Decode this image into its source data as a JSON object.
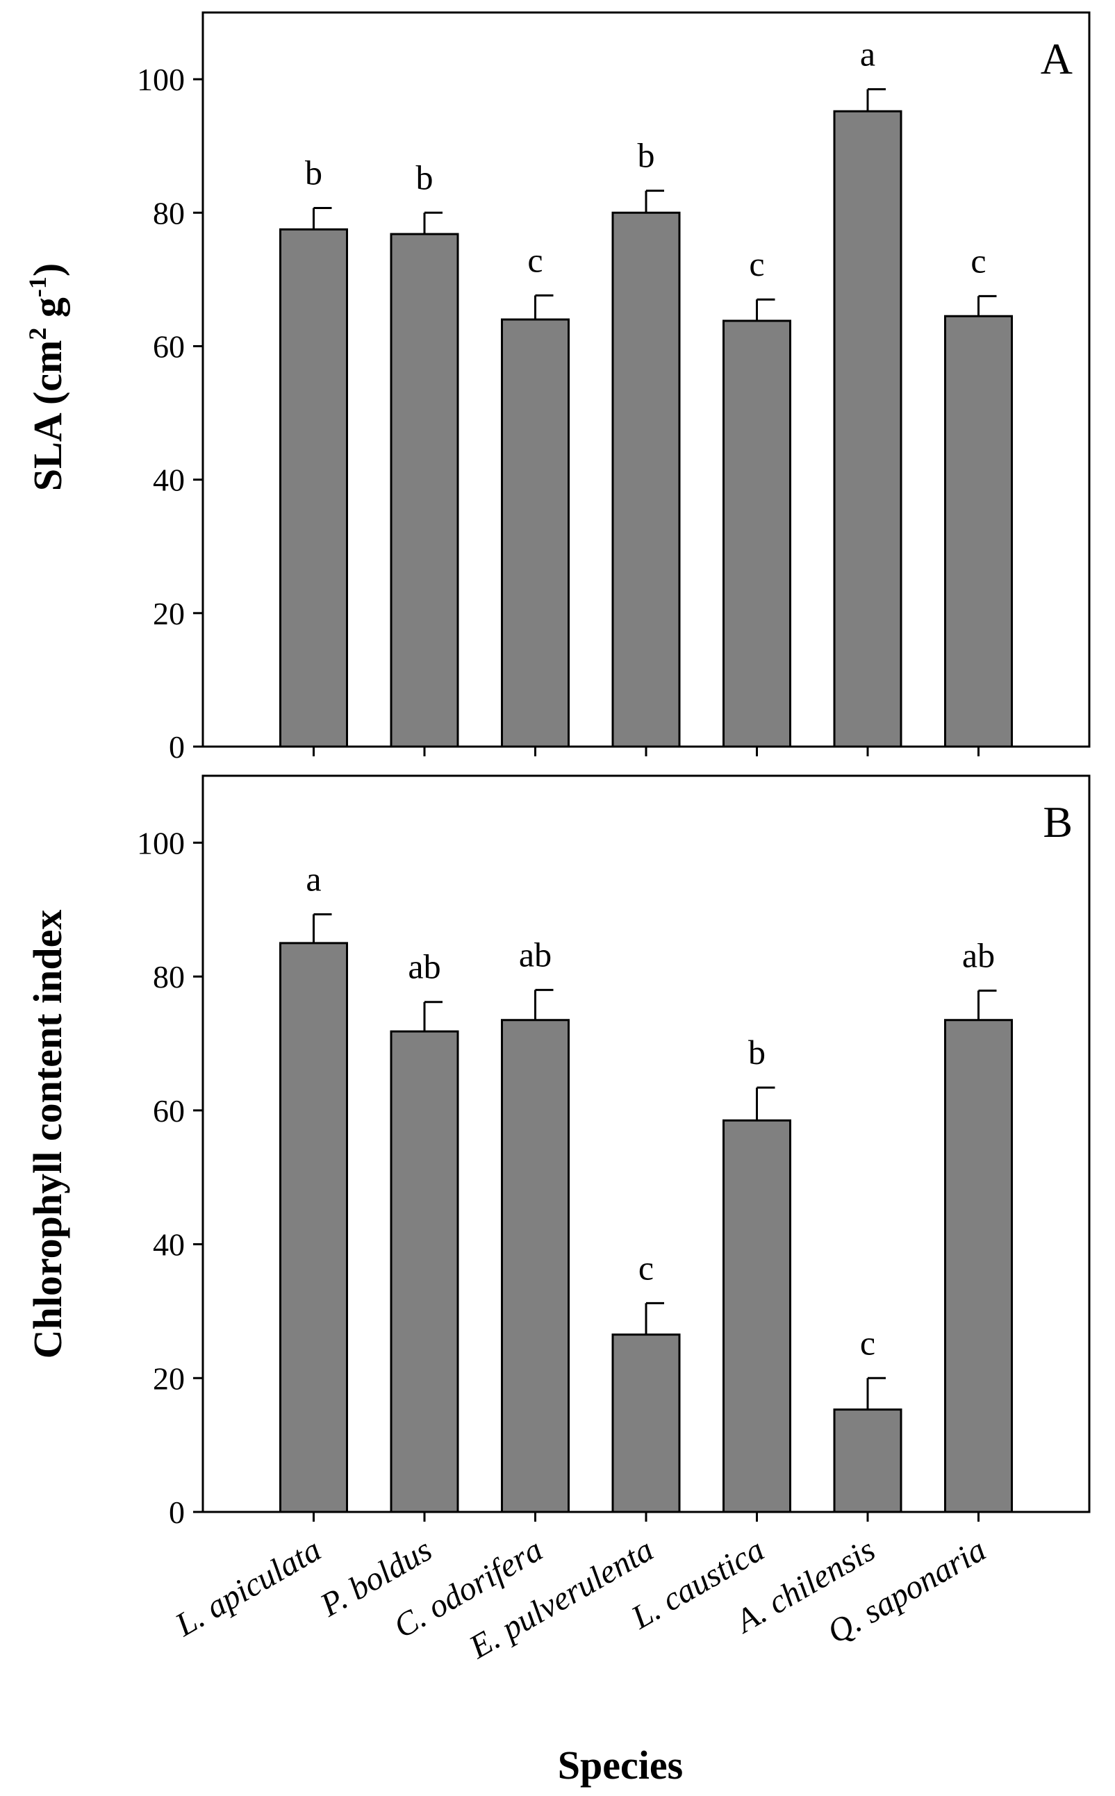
{
  "chart_data": [
    {
      "type": "bar",
      "panel_label": "A",
      "categories": [
        "L. apiculata",
        "P. boldus",
        "C. odorifera",
        "E. pulverulenta",
        "L. caustica",
        "A. chilensis",
        "Q. saponaria"
      ],
      "values": [
        77.5,
        76.8,
        64.0,
        80.0,
        63.8,
        95.2,
        64.5
      ],
      "errors": [
        3.2,
        3.2,
        3.6,
        3.3,
        3.2,
        3.3,
        3.0
      ],
      "significance": [
        "b",
        "b",
        "c",
        "b",
        "c",
        "a",
        "c"
      ],
      "ylabel": {
        "text": "SLA (cm",
        "sup1": "2",
        "mid": " g",
        "sup2": "-1",
        "end": ")"
      },
      "ylim": [
        0,
        110
      ],
      "yticks": [
        "0",
        "20",
        "40",
        "60",
        "80",
        "100"
      ],
      "bar_color": "#808080",
      "show_x_labels": false
    },
    {
      "type": "bar",
      "panel_label": "B",
      "categories": [
        "L. apiculata",
        "P. boldus",
        "C. odorifera",
        "E. pulverulenta",
        "L. caustica",
        "A. chilensis",
        "Q. saponaria"
      ],
      "values": [
        85.0,
        71.8,
        73.5,
        26.5,
        58.5,
        15.3,
        73.5
      ],
      "errors": [
        4.3,
        4.4,
        4.5,
        4.7,
        4.9,
        4.7,
        4.4
      ],
      "significance": [
        "a",
        "ab",
        "ab",
        "c",
        "b",
        "c",
        "ab"
      ],
      "ylabel": {
        "text": "Chlorophyll content index"
      },
      "ylim": [
        0,
        110
      ],
      "yticks": [
        "0",
        "20",
        "40",
        "60",
        "80",
        "100"
      ],
      "bar_color": "#808080",
      "show_x_labels": true
    }
  ],
  "xlabel": "Species"
}
